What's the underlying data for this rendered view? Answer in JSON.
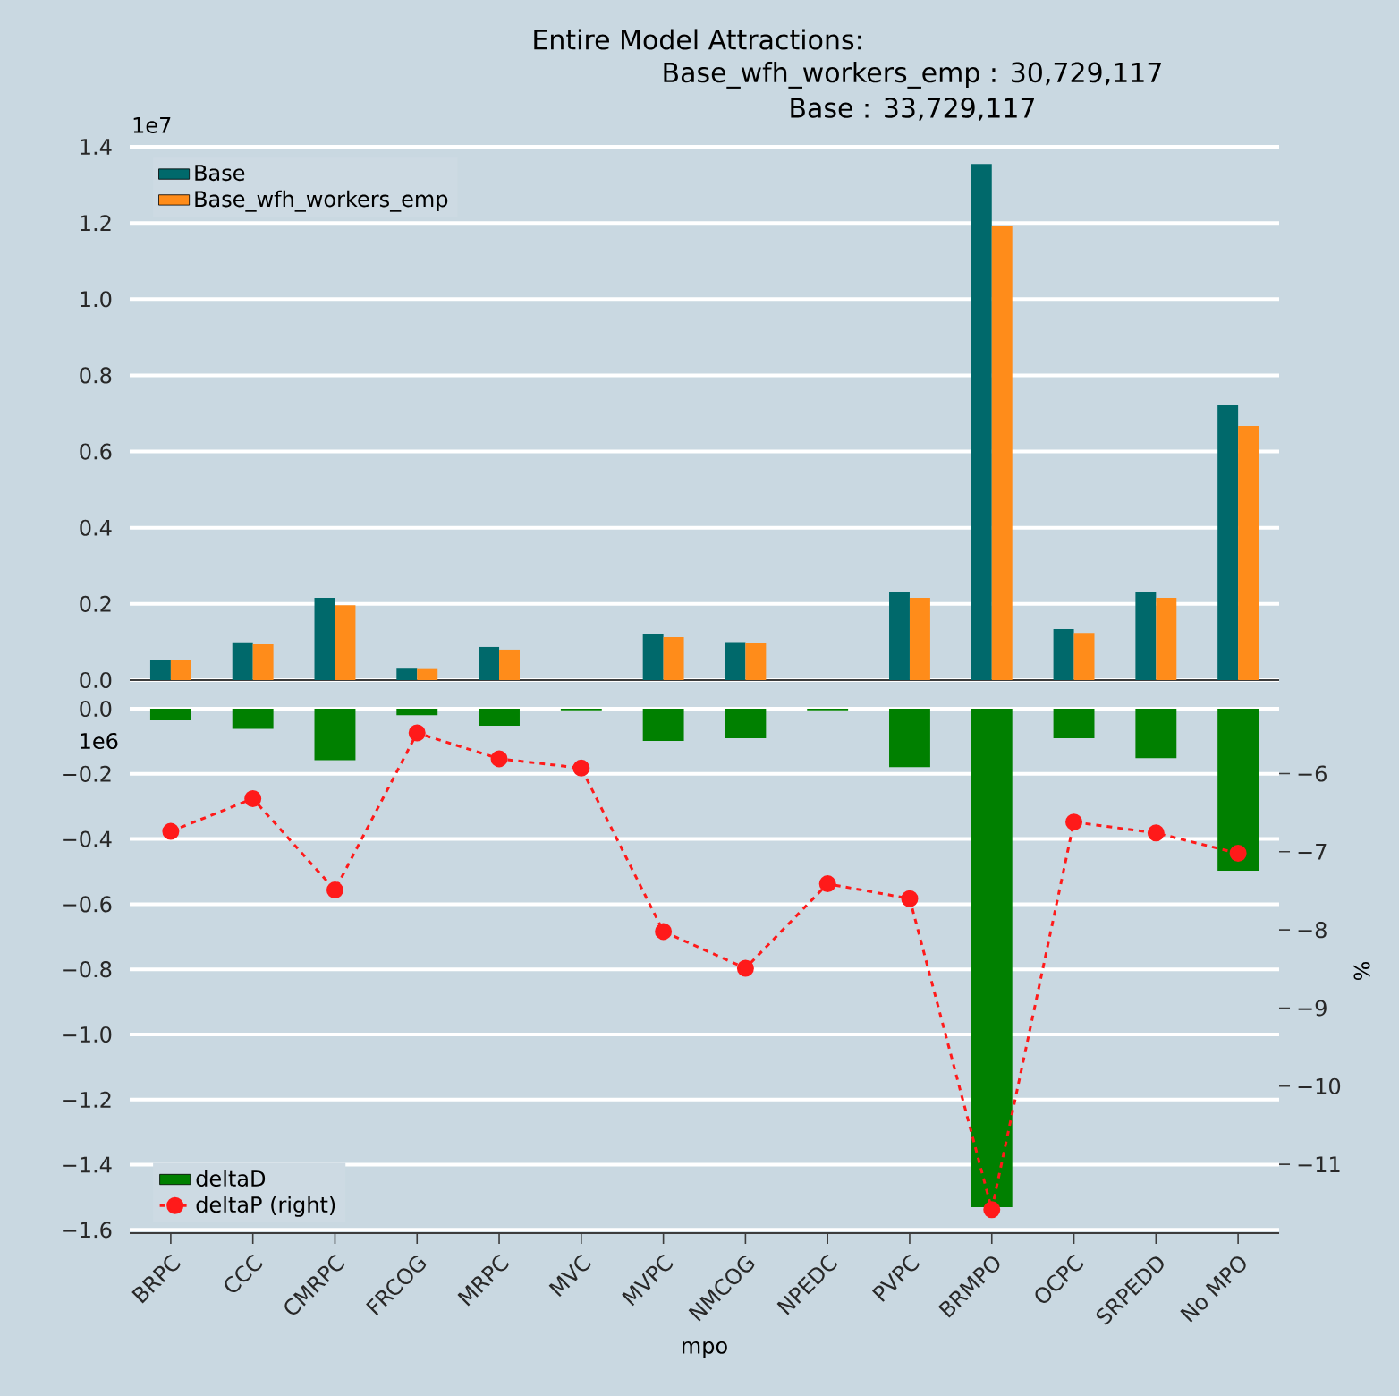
{
  "chart_data": [
    {
      "type": "bar",
      "title": "Entire Model Attractions:",
      "subtitle": "Base_wfh_workers_emp : 30,729,117",
      "annotations": [
        "Base : 33,729,117",
        "1e7"
      ],
      "categories": [
        null,
        null,
        null,
        null,
        null,
        null,
        null,
        null,
        null,
        null,
        null,
        null,
        null,
        null
      ],
      "series": [
        {
          "name": "Base",
          "color": "#00696b",
          "values": [
            0.054,
            0.099,
            0.216,
            0.03,
            0.087,
            0,
            0.122,
            0.1,
            0,
            0.23,
            1.355,
            0.134,
            0.23,
            0.721
          ]
        },
        {
          "name": "Base_wfh_workers_emp",
          "color": "#ff8c1a",
          "values": [
            0.053,
            0.094,
            0.197,
            0.029,
            0.08,
            0,
            0.113,
            0.097,
            0,
            0.216,
            1.193,
            0.124,
            0.216,
            0.667
          ]
        }
      ],
      "ylim": [
        0,
        1.4
      ],
      "yticks": [
        {
          "value": 0,
          "label": "0.0"
        },
        0.2,
        0.4,
        0.6,
        0.8,
        {
          "value": 1,
          "label": "1.0"
        },
        1.2,
        1.4
      ],
      "grid": "y",
      "legend": "top left",
      "tick_labels": "y"
    },
    {
      "type": "bar",
      "xlabel": "mpo",
      "y2label": "%",
      "annotations": [
        "1e6"
      ],
      "categories": [
        "BRPC",
        "CCC",
        "CMRPC",
        "FRCOG",
        "MRPC",
        "MVC",
        "MVPC",
        "NMCOG",
        "NPEDC",
        "PVPC",
        "BRMPO",
        "OCPC",
        "SRPEDD",
        "No MPO"
      ],
      "series": [
        {
          "name": "deltaD",
          "color": "#008000",
          "values": [
            -0.036,
            -0.062,
            -0.158,
            -0.02,
            -0.052,
            -0.005,
            -0.099,
            -0.091,
            -0.005,
            -0.179,
            -1.53,
            -0.091,
            -0.152,
            -0.497
          ]
        },
        {
          "name": "deltaP (right)",
          "type": "line",
          "axis": "y2",
          "color": "#ff1a1a",
          "values": [
            -6.74,
            -6.32,
            -7.49,
            -5.48,
            -5.81,
            -5.93,
            -8.02,
            -8.49,
            -7.41,
            -7.6,
            -11.58,
            -6.62,
            -6.76,
            -7.02
          ]
        }
      ],
      "ylim": [
        -1.61,
        0
      ],
      "yticks": [
        {
          "value": 0,
          "label": "0.0"
        },
        {
          "value": -0.2,
          "label": "−0.2"
        },
        {
          "value": -0.4,
          "label": "−0.4"
        },
        {
          "value": -0.6,
          "label": "−0.6"
        },
        {
          "value": -0.8,
          "label": "−0.8"
        },
        {
          "value": -1,
          "label": "−1.0"
        },
        {
          "value": -1.2,
          "label": "−1.2"
        },
        {
          "value": -1.4,
          "label": "−1.4"
        },
        {
          "value": -1.6,
          "label": "−1.6"
        }
      ],
      "y2lim": [
        -11.88,
        -5.17
      ],
      "y2ticks": [
        {
          "value": -6,
          "label": "−6"
        },
        {
          "value": -7,
          "label": "−7"
        },
        {
          "value": -8,
          "label": "−8"
        },
        {
          "value": -9,
          "label": "−9"
        },
        {
          "value": -10,
          "label": "−10"
        },
        {
          "value": -11,
          "label": "−11"
        }
      ],
      "grid": "y",
      "legend": "bottom left",
      "marker": "circle",
      "line_style": "dashed"
    }
  ]
}
